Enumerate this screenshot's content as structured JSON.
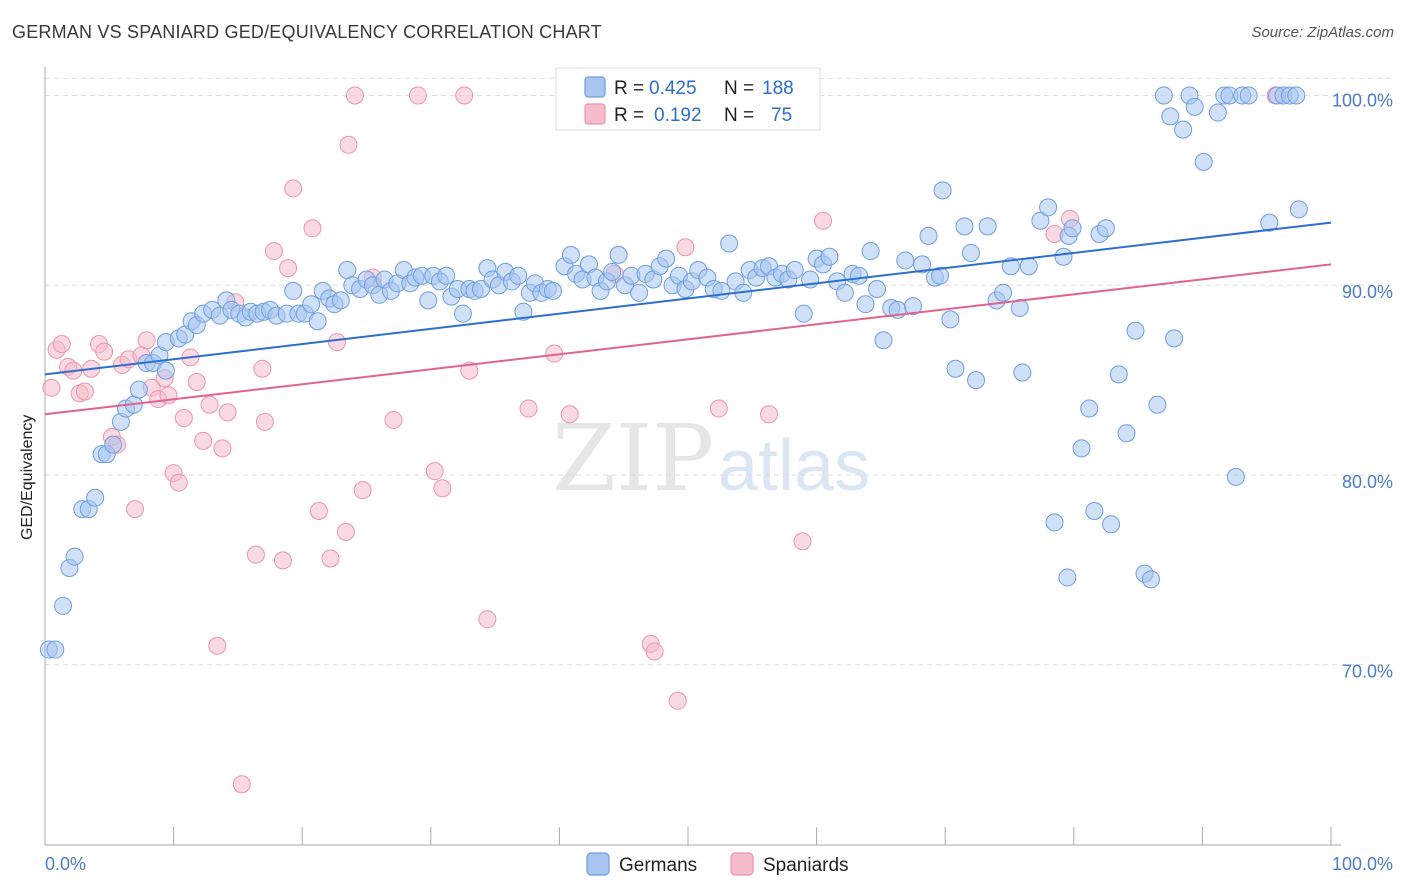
{
  "title": "GERMAN VS SPANIARD GED/EQUIVALENCY CORRELATION CHART",
  "source": "Source: ZipAtlas.com",
  "watermark": {
    "zip": "ZIP",
    "atlas": "atlas"
  },
  "colors": {
    "german_fill": "#a8c6f0",
    "german_stroke": "#6f9ee0",
    "german_line": "#2c6fcc",
    "spaniard_fill": "#f6bccb",
    "spaniard_stroke": "#ec94ad",
    "spaniard_line": "#e0648c",
    "tick_text": "#4a7cc9",
    "grid": "#dddddd"
  },
  "legend": {
    "row1": {
      "r_label": "R = ",
      "r_value": "0.425",
      "n_label": "N = ",
      "n_value": "188"
    },
    "row2": {
      "r_label": "R = ",
      "r_value": "0.192",
      "n_label": "N = ",
      "n_value": "75"
    }
  },
  "bottom_legend": {
    "german": "Germans",
    "spaniard": "Spaniards"
  },
  "chart_data": {
    "type": "scatter",
    "xlabel": "",
    "ylabel": "GED/Equivalency",
    "xlim": [
      0,
      100
    ],
    "ylim": [
      60.5,
      101.5
    ],
    "x_tick_labels": [
      "0.0%",
      "100.0%"
    ],
    "y_ticks": [
      70,
      80,
      90,
      100
    ],
    "y_tick_labels": [
      "70.0%",
      "80.0%",
      "90.0%",
      "100.0%"
    ],
    "grid": "dashed horizontal",
    "legend_position": "top-center",
    "series": [
      {
        "name": "Germans",
        "r": 0.425,
        "n": 188,
        "trend": {
          "x": [
            0,
            100
          ],
          "y": [
            85.3,
            93.3
          ]
        },
        "points": [
          [
            0.3,
            70.8
          ],
          [
            0.8,
            70.8
          ],
          [
            1.4,
            73.1
          ],
          [
            1.9,
            75.1
          ],
          [
            2.3,
            75.7
          ],
          [
            2.9,
            78.2
          ],
          [
            3.4,
            78.2
          ],
          [
            3.9,
            78.8
          ],
          [
            4.4,
            81.1
          ],
          [
            4.8,
            81.1
          ],
          [
            5.3,
            81.6
          ],
          [
            5.9,
            82.8
          ],
          [
            6.3,
            83.5
          ],
          [
            6.9,
            83.7
          ],
          [
            7.3,
            84.5
          ],
          [
            7.9,
            85.9
          ],
          [
            8.4,
            85.9
          ],
          [
            8.9,
            86.3
          ],
          [
            9.4,
            85.5
          ],
          [
            9.4,
            87.0
          ],
          [
            10.4,
            87.2
          ],
          [
            10.9,
            87.4
          ],
          [
            11.4,
            88.1
          ],
          [
            11.8,
            87.9
          ],
          [
            12.3,
            88.5
          ],
          [
            13.0,
            88.7
          ],
          [
            13.6,
            88.4
          ],
          [
            14.1,
            89.2
          ],
          [
            14.5,
            88.7
          ],
          [
            15.1,
            88.5
          ],
          [
            15.6,
            88.3
          ],
          [
            16.0,
            88.6
          ],
          [
            16.5,
            88.5
          ],
          [
            17.0,
            88.6
          ],
          [
            17.5,
            88.7
          ],
          [
            18.0,
            88.4
          ],
          [
            18.8,
            88.5
          ],
          [
            19.3,
            89.7
          ],
          [
            19.7,
            88.5
          ],
          [
            20.2,
            88.5
          ],
          [
            20.7,
            89.0
          ],
          [
            21.2,
            88.1
          ],
          [
            21.6,
            89.7
          ],
          [
            22.1,
            89.3
          ],
          [
            22.5,
            89.0
          ],
          [
            23.0,
            89.2
          ],
          [
            23.5,
            90.8
          ],
          [
            23.9,
            90.0
          ],
          [
            24.5,
            89.8
          ],
          [
            25.0,
            90.3
          ],
          [
            25.5,
            90.0
          ],
          [
            26.0,
            89.5
          ],
          [
            26.4,
            90.3
          ],
          [
            26.9,
            89.7
          ],
          [
            27.4,
            90.1
          ],
          [
            27.9,
            90.8
          ],
          [
            28.4,
            90.1
          ],
          [
            28.8,
            90.4
          ],
          [
            29.3,
            90.5
          ],
          [
            29.8,
            89.2
          ],
          [
            30.2,
            90.5
          ],
          [
            30.7,
            90.2
          ],
          [
            31.2,
            90.5
          ],
          [
            31.6,
            89.4
          ],
          [
            32.1,
            89.8
          ],
          [
            32.5,
            88.5
          ],
          [
            33.0,
            89.8
          ],
          [
            33.4,
            89.7
          ],
          [
            33.9,
            89.8
          ],
          [
            34.4,
            90.9
          ],
          [
            34.8,
            90.3
          ],
          [
            35.3,
            90.0
          ],
          [
            35.8,
            90.7
          ],
          [
            36.3,
            90.2
          ],
          [
            36.8,
            90.5
          ],
          [
            37.2,
            88.6
          ],
          [
            37.7,
            89.6
          ],
          [
            38.1,
            90.1
          ],
          [
            38.6,
            89.6
          ],
          [
            39.1,
            89.8
          ],
          [
            39.5,
            89.7
          ],
          [
            40.4,
            91.0
          ],
          [
            40.9,
            91.6
          ],
          [
            41.3,
            90.6
          ],
          [
            41.8,
            90.3
          ],
          [
            42.3,
            91.1
          ],
          [
            42.8,
            90.4
          ],
          [
            43.2,
            89.7
          ],
          [
            43.7,
            90.2
          ],
          [
            44.1,
            90.7
          ],
          [
            44.6,
            91.6
          ],
          [
            45.1,
            90.0
          ],
          [
            45.6,
            90.5
          ],
          [
            46.2,
            89.6
          ],
          [
            46.7,
            90.6
          ],
          [
            47.3,
            90.3
          ],
          [
            47.8,
            91.0
          ],
          [
            48.3,
            91.4
          ],
          [
            48.8,
            90.0
          ],
          [
            49.3,
            90.5
          ],
          [
            49.8,
            89.8
          ],
          [
            50.3,
            90.2
          ],
          [
            50.8,
            90.8
          ],
          [
            51.5,
            90.4
          ],
          [
            52.0,
            89.8
          ],
          [
            52.6,
            89.7
          ],
          [
            53.2,
            92.2
          ],
          [
            53.7,
            90.2
          ],
          [
            54.3,
            89.6
          ],
          [
            54.8,
            90.8
          ],
          [
            55.3,
            90.4
          ],
          [
            55.8,
            90.9
          ],
          [
            56.3,
            91.0
          ],
          [
            56.8,
            90.4
          ],
          [
            57.3,
            90.6
          ],
          [
            57.8,
            90.3
          ],
          [
            58.3,
            90.8
          ],
          [
            59.0,
            88.5
          ],
          [
            59.5,
            90.3
          ],
          [
            60.0,
            91.4
          ],
          [
            60.5,
            91.1
          ],
          [
            61.0,
            91.5
          ],
          [
            61.6,
            90.2
          ],
          [
            62.2,
            89.6
          ],
          [
            62.8,
            90.6
          ],
          [
            63.3,
            90.5
          ],
          [
            63.8,
            89.0
          ],
          [
            64.2,
            91.8
          ],
          [
            64.7,
            89.8
          ],
          [
            65.2,
            87.1
          ],
          [
            65.8,
            88.8
          ],
          [
            66.3,
            88.7
          ],
          [
            66.9,
            91.3
          ],
          [
            67.5,
            88.9
          ],
          [
            68.2,
            91.1
          ],
          [
            68.7,
            92.6
          ],
          [
            69.2,
            90.4
          ],
          [
            69.6,
            90.5
          ],
          [
            69.8,
            95.0
          ],
          [
            70.4,
            88.2
          ],
          [
            70.8,
            85.6
          ],
          [
            71.5,
            93.1
          ],
          [
            72.0,
            91.7
          ],
          [
            72.4,
            85.0
          ],
          [
            73.3,
            93.1
          ],
          [
            74.0,
            89.2
          ],
          [
            74.5,
            89.6
          ],
          [
            75.1,
            91.0
          ],
          [
            75.8,
            88.8
          ],
          [
            76.0,
            85.4
          ],
          [
            76.5,
            91.0
          ],
          [
            77.4,
            93.4
          ],
          [
            78.0,
            94.1
          ],
          [
            78.5,
            77.5
          ],
          [
            79.2,
            91.5
          ],
          [
            79.5,
            74.6
          ],
          [
            79.6,
            92.6
          ],
          [
            79.9,
            93.0
          ],
          [
            80.6,
            81.4
          ],
          [
            81.2,
            83.5
          ],
          [
            81.6,
            78.1
          ],
          [
            82.0,
            92.7
          ],
          [
            82.5,
            93.0
          ],
          [
            82.9,
            77.4
          ],
          [
            83.5,
            85.3
          ],
          [
            84.1,
            82.2
          ],
          [
            84.8,
            87.6
          ],
          [
            85.5,
            74.8
          ],
          [
            86.0,
            74.5
          ],
          [
            86.5,
            83.7
          ],
          [
            87.0,
            100.0
          ],
          [
            87.5,
            98.9
          ],
          [
            87.8,
            87.2
          ],
          [
            88.5,
            98.2
          ],
          [
            89.0,
            100.0
          ],
          [
            89.4,
            99.4
          ],
          [
            90.1,
            96.5
          ],
          [
            91.2,
            99.1
          ],
          [
            91.7,
            100.0
          ],
          [
            92.1,
            100.0
          ],
          [
            92.6,
            79.9
          ],
          [
            93.1,
            100.0
          ],
          [
            93.6,
            100.0
          ],
          [
            95.2,
            93.3
          ],
          [
            95.8,
            100.0
          ],
          [
            96.3,
            100.0
          ],
          [
            96.8,
            100.0
          ],
          [
            97.3,
            100.0
          ],
          [
            97.5,
            94.0
          ]
        ]
      },
      {
        "name": "Spaniards",
        "r": 0.192,
        "n": 75,
        "trend": {
          "x": [
            0,
            100
          ],
          "y": [
            83.2,
            91.1
          ]
        },
        "points": [
          [
            0.5,
            84.6
          ],
          [
            0.9,
            86.6
          ],
          [
            1.3,
            86.9
          ],
          [
            1.8,
            85.7
          ],
          [
            2.2,
            85.5
          ],
          [
            2.7,
            84.3
          ],
          [
            3.1,
            84.4
          ],
          [
            3.6,
            85.6
          ],
          [
            4.2,
            86.9
          ],
          [
            4.6,
            86.5
          ],
          [
            5.2,
            82.0
          ],
          [
            5.6,
            81.6
          ],
          [
            6.0,
            85.8
          ],
          [
            6.5,
            86.1
          ],
          [
            7.0,
            78.2
          ],
          [
            7.5,
            86.3
          ],
          [
            7.9,
            87.1
          ],
          [
            8.3,
            84.6
          ],
          [
            8.8,
            84.0
          ],
          [
            9.3,
            85.1
          ],
          [
            9.6,
            84.2
          ],
          [
            10.0,
            80.1
          ],
          [
            10.4,
            79.6
          ],
          [
            10.8,
            83.0
          ],
          [
            11.3,
            86.2
          ],
          [
            11.8,
            84.9
          ],
          [
            12.3,
            81.8
          ],
          [
            12.8,
            83.7
          ],
          [
            13.4,
            71.0
          ],
          [
            13.8,
            81.4
          ],
          [
            14.2,
            83.3
          ],
          [
            14.8,
            89.1
          ],
          [
            15.3,
            63.7
          ],
          [
            16.4,
            75.8
          ],
          [
            16.9,
            85.6
          ],
          [
            17.1,
            82.8
          ],
          [
            17.8,
            91.8
          ],
          [
            18.5,
            75.5
          ],
          [
            18.9,
            90.9
          ],
          [
            19.3,
            95.1
          ],
          [
            20.8,
            93.0
          ],
          [
            21.3,
            78.1
          ],
          [
            22.2,
            75.6
          ],
          [
            22.7,
            87.0
          ],
          [
            23.4,
            77.0
          ],
          [
            23.6,
            97.4
          ],
          [
            24.1,
            100.0
          ],
          [
            24.7,
            79.2
          ],
          [
            25.5,
            90.4
          ],
          [
            27.1,
            82.9
          ],
          [
            29.0,
            100.0
          ],
          [
            30.3,
            80.2
          ],
          [
            30.9,
            79.3
          ],
          [
            32.6,
            100.0
          ],
          [
            33.0,
            85.5
          ],
          [
            34.4,
            72.4
          ],
          [
            37.6,
            83.5
          ],
          [
            39.6,
            86.4
          ],
          [
            40.8,
            83.2
          ],
          [
            44.3,
            90.6
          ],
          [
            47.1,
            71.1
          ],
          [
            47.4,
            70.7
          ],
          [
            49.2,
            68.1
          ],
          [
            49.8,
            92.0
          ],
          [
            52.4,
            83.5
          ],
          [
            56.3,
            83.2
          ],
          [
            58.9,
            76.5
          ],
          [
            60.5,
            93.4
          ],
          [
            78.5,
            92.7
          ],
          [
            79.7,
            93.5
          ],
          [
            95.7,
            100.0
          ]
        ]
      }
    ]
  }
}
